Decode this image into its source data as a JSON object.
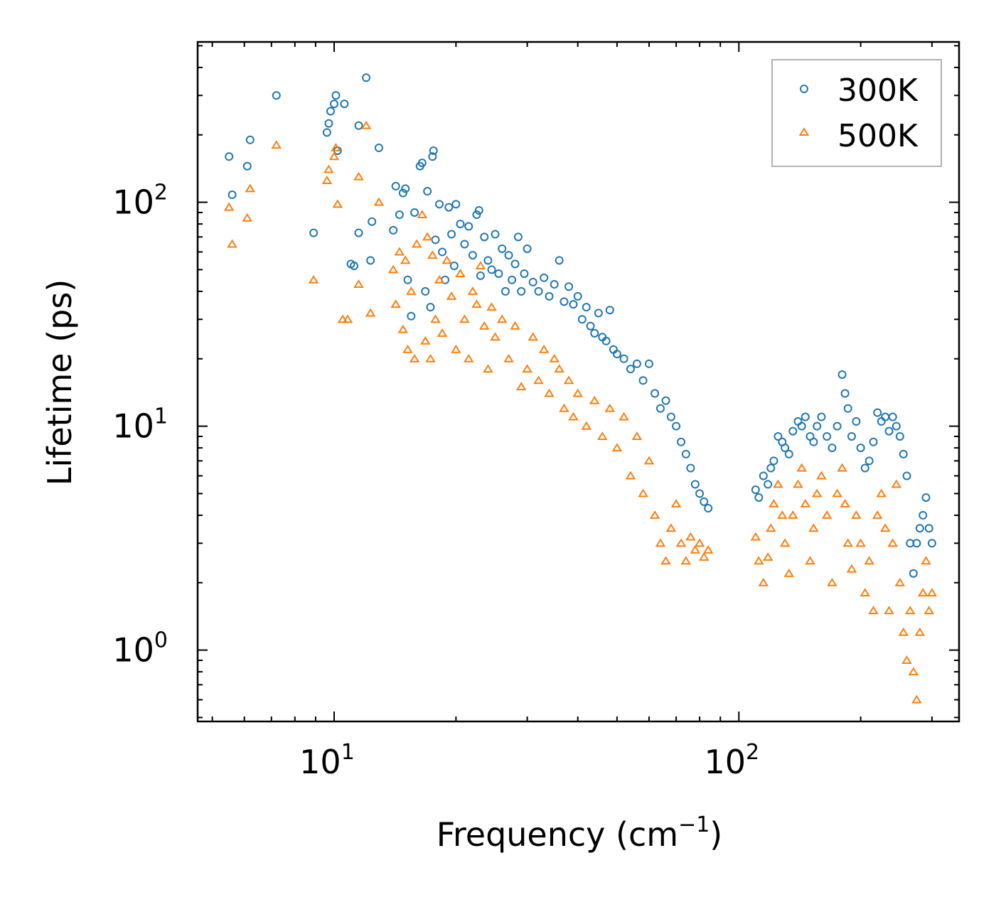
{
  "chart_data": {
    "type": "scatter",
    "x_scale": "log",
    "y_scale": "log",
    "xlabel": "Frequency (cm",
    "xlabel_sup": "−1",
    "xlabel_end": ")",
    "ylabel": "Lifetime (ps)",
    "xlim": [
      4.6,
      350
    ],
    "ylim": [
      0.48,
      520
    ],
    "x_ticks": [
      {
        "value": 10,
        "base": "10",
        "exp": "1"
      },
      {
        "value": 100,
        "base": "10",
        "exp": "2"
      }
    ],
    "y_ticks": [
      {
        "value": 1,
        "base": "10",
        "exp": "0"
      },
      {
        "value": 10,
        "base": "10",
        "exp": "1"
      },
      {
        "value": 100,
        "base": "10",
        "exp": "2"
      }
    ],
    "legend_position": "top-right",
    "series": [
      {
        "name": "300K",
        "marker": "circle",
        "color": "#1f77b4",
        "points": [
          [
            5.5,
            160
          ],
          [
            5.6,
            108
          ],
          [
            6.1,
            145
          ],
          [
            6.2,
            190
          ],
          [
            7.2,
            300
          ],
          [
            8.9,
            73
          ],
          [
            9.6,
            205
          ],
          [
            9.7,
            225
          ],
          [
            9.8,
            255
          ],
          [
            10.0,
            275
          ],
          [
            10.1,
            300
          ],
          [
            10.2,
            170
          ],
          [
            10.6,
            275
          ],
          [
            11.0,
            53
          ],
          [
            11.2,
            52
          ],
          [
            11.5,
            220
          ],
          [
            11.5,
            73
          ],
          [
            12.0,
            360
          ],
          [
            12.3,
            55
          ],
          [
            12.4,
            82
          ],
          [
            12.9,
            175
          ],
          [
            14.0,
            75
          ],
          [
            14.2,
            118
          ],
          [
            14.5,
            88
          ],
          [
            14.8,
            110
          ],
          [
            15.0,
            115
          ],
          [
            15.2,
            45
          ],
          [
            15.5,
            31
          ],
          [
            15.8,
            90
          ],
          [
            16.3,
            145
          ],
          [
            16.5,
            150
          ],
          [
            16.8,
            40
          ],
          [
            17.0,
            112
          ],
          [
            17.3,
            34
          ],
          [
            17.5,
            160
          ],
          [
            17.6,
            170
          ],
          [
            17.8,
            68
          ],
          [
            18.2,
            98
          ],
          [
            18.5,
            60
          ],
          [
            18.8,
            45
          ],
          [
            19.2,
            95
          ],
          [
            19.5,
            72
          ],
          [
            19.8,
            52
          ],
          [
            20.0,
            98
          ],
          [
            20.5,
            80
          ],
          [
            21.0,
            65
          ],
          [
            21.5,
            78
          ],
          [
            22.0,
            58
          ],
          [
            22.5,
            88
          ],
          [
            22.8,
            92
          ],
          [
            23.0,
            47
          ],
          [
            23.5,
            70
          ],
          [
            24.0,
            55
          ],
          [
            24.5,
            50
          ],
          [
            25.0,
            72
          ],
          [
            25.5,
            48
          ],
          [
            26.0,
            62
          ],
          [
            26.5,
            40
          ],
          [
            27.0,
            58
          ],
          [
            27.5,
            45
          ],
          [
            28.0,
            53
          ],
          [
            28.5,
            70
          ],
          [
            29.0,
            40
          ],
          [
            29.5,
            48
          ],
          [
            30.0,
            62
          ],
          [
            31.0,
            44
          ],
          [
            32.0,
            40
          ],
          [
            33.0,
            46
          ],
          [
            34.0,
            38
          ],
          [
            35.0,
            43
          ],
          [
            36.0,
            55
          ],
          [
            37.0,
            36
          ],
          [
            38.0,
            42
          ],
          [
            39.0,
            35
          ],
          [
            40.0,
            38
          ],
          [
            41.0,
            30
          ],
          [
            42.0,
            34
          ],
          [
            43.0,
            28
          ],
          [
            44.0,
            26
          ],
          [
            45.0,
            32
          ],
          [
            46.0,
            25
          ],
          [
            47.0,
            24
          ],
          [
            48.0,
            33
          ],
          [
            49.0,
            22
          ],
          [
            50.0,
            21
          ],
          [
            52.0,
            20
          ],
          [
            54.0,
            18
          ],
          [
            56.0,
            19
          ],
          [
            58.0,
            16
          ],
          [
            60.0,
            19
          ],
          [
            62.0,
            14
          ],
          [
            64.0,
            12
          ],
          [
            66.0,
            13
          ],
          [
            68.0,
            11
          ],
          [
            70.0,
            10
          ],
          [
            72.0,
            8.5
          ],
          [
            74.0,
            7.5
          ],
          [
            76.0,
            6.5
          ],
          [
            78.0,
            5.5
          ],
          [
            80.0,
            5.0
          ],
          [
            82.0,
            4.6
          ],
          [
            84.0,
            4.3
          ],
          [
            110,
            5.2
          ],
          [
            112,
            4.8
          ],
          [
            115,
            6.0
          ],
          [
            118,
            5.5
          ],
          [
            120,
            6.5
          ],
          [
            122,
            7.0
          ],
          [
            125,
            9.0
          ],
          [
            128,
            8.5
          ],
          [
            130,
            8.0
          ],
          [
            133,
            7.5
          ],
          [
            136,
            9.5
          ],
          [
            140,
            10.5
          ],
          [
            143,
            10.0
          ],
          [
            146,
            11.0
          ],
          [
            150,
            9.0
          ],
          [
            153,
            8.5
          ],
          [
            156,
            10.0
          ],
          [
            160,
            11.0
          ],
          [
            165,
            9.0
          ],
          [
            170,
            8.0
          ],
          [
            175,
            10.0
          ],
          [
            180,
            17.0
          ],
          [
            183,
            14.0
          ],
          [
            186,
            12.0
          ],
          [
            190,
            9.0
          ],
          [
            195,
            10.5
          ],
          [
            200,
            8.0
          ],
          [
            205,
            6.5
          ],
          [
            210,
            7.0
          ],
          [
            215,
            8.5
          ],
          [
            220,
            11.5
          ],
          [
            225,
            10.5
          ],
          [
            230,
            11.0
          ],
          [
            235,
            9.5
          ],
          [
            240,
            11.0
          ],
          [
            245,
            10.0
          ],
          [
            250,
            9.0
          ],
          [
            255,
            7.5
          ],
          [
            260,
            6.0
          ],
          [
            265,
            3.0
          ],
          [
            270,
            2.2
          ],
          [
            275,
            3.0
          ],
          [
            280,
            3.5
          ],
          [
            285,
            4.0
          ],
          [
            290,
            4.8
          ],
          [
            295,
            3.5
          ],
          [
            300,
            3.0
          ]
        ]
      },
      {
        "name": "500K",
        "marker": "triangle",
        "color": "#ff7f0e",
        "points": [
          [
            5.5,
            95
          ],
          [
            5.6,
            65
          ],
          [
            6.1,
            85
          ],
          [
            6.2,
            115
          ],
          [
            7.2,
            180
          ],
          [
            8.9,
            45
          ],
          [
            9.6,
            125
          ],
          [
            9.7,
            140
          ],
          [
            10.0,
            160
          ],
          [
            10.1,
            175
          ],
          [
            10.2,
            98
          ],
          [
            10.5,
            30
          ],
          [
            10.8,
            30
          ],
          [
            11.5,
            130
          ],
          [
            11.5,
            43
          ],
          [
            12.0,
            220
          ],
          [
            12.3,
            32
          ],
          [
            12.9,
            100
          ],
          [
            14.0,
            50
          ],
          [
            14.2,
            35
          ],
          [
            14.5,
            60
          ],
          [
            14.8,
            27
          ],
          [
            15.0,
            55
          ],
          [
            15.2,
            22
          ],
          [
            15.5,
            40
          ],
          [
            15.8,
            20
          ],
          [
            16.0,
            65
          ],
          [
            16.5,
            88
          ],
          [
            16.8,
            24
          ],
          [
            17.0,
            70
          ],
          [
            17.3,
            20
          ],
          [
            17.5,
            58
          ],
          [
            17.8,
            30
          ],
          [
            18.2,
            45
          ],
          [
            18.5,
            26
          ],
          [
            19.0,
            55
          ],
          [
            19.5,
            38
          ],
          [
            20.0,
            22
          ],
          [
            20.5,
            48
          ],
          [
            21.0,
            30
          ],
          [
            21.5,
            20
          ],
          [
            22.0,
            40
          ],
          [
            22.5,
            35
          ],
          [
            23.0,
            52
          ],
          [
            23.5,
            28
          ],
          [
            24.0,
            18
          ],
          [
            24.5,
            34
          ],
          [
            25.0,
            25
          ],
          [
            26.0,
            30
          ],
          [
            27.0,
            20
          ],
          [
            28.0,
            28
          ],
          [
            29.0,
            15
          ],
          [
            30.0,
            18
          ],
          [
            31.0,
            25
          ],
          [
            32.0,
            16
          ],
          [
            33.0,
            22
          ],
          [
            34.0,
            14
          ],
          [
            35.0,
            20
          ],
          [
            36.0,
            18
          ],
          [
            37.0,
            12
          ],
          [
            38.0,
            16
          ],
          [
            39.0,
            11
          ],
          [
            40.0,
            14
          ],
          [
            42.0,
            10
          ],
          [
            44.0,
            13
          ],
          [
            46.0,
            9
          ],
          [
            48.0,
            12
          ],
          [
            50.0,
            8
          ],
          [
            52.0,
            11
          ],
          [
            54.0,
            6
          ],
          [
            56.0,
            9
          ],
          [
            58.0,
            5
          ],
          [
            60.0,
            7
          ],
          [
            62.0,
            4
          ],
          [
            64.0,
            3
          ],
          [
            66.0,
            2.5
          ],
          [
            68.0,
            3.5
          ],
          [
            70.0,
            4.5
          ],
          [
            72.0,
            3.0
          ],
          [
            74.0,
            2.5
          ],
          [
            76.0,
            3.2
          ],
          [
            78.0,
            2.8
          ],
          [
            80.0,
            3.0
          ],
          [
            82.0,
            2.6
          ],
          [
            84.0,
            2.8
          ],
          [
            110,
            3.2
          ],
          [
            112,
            2.5
          ],
          [
            115,
            2.0
          ],
          [
            118,
            2.6
          ],
          [
            120,
            3.5
          ],
          [
            122,
            4.5
          ],
          [
            125,
            5.5
          ],
          [
            128,
            4.0
          ],
          [
            130,
            3.0
          ],
          [
            133,
            2.2
          ],
          [
            136,
            4.0
          ],
          [
            140,
            5.5
          ],
          [
            143,
            6.5
          ],
          [
            146,
            4.5
          ],
          [
            150,
            2.5
          ],
          [
            153,
            3.5
          ],
          [
            156,
            5.0
          ],
          [
            160,
            6.0
          ],
          [
            165,
            4.0
          ],
          [
            170,
            2.0
          ],
          [
            175,
            5.0
          ],
          [
            180,
            6.5
          ],
          [
            183,
            4.5
          ],
          [
            186,
            3.0
          ],
          [
            190,
            2.3
          ],
          [
            195,
            4.0
          ],
          [
            200,
            3.0
          ],
          [
            205,
            1.8
          ],
          [
            210,
            2.5
          ],
          [
            215,
            1.5
          ],
          [
            220,
            4.0
          ],
          [
            225,
            5.0
          ],
          [
            230,
            3.5
          ],
          [
            235,
            1.5
          ],
          [
            240,
            3.0
          ],
          [
            245,
            5.5
          ],
          [
            250,
            2.0
          ],
          [
            255,
            1.2
          ],
          [
            260,
            0.9
          ],
          [
            265,
            1.5
          ],
          [
            270,
            0.8
          ],
          [
            275,
            0.6
          ],
          [
            280,
            1.2
          ],
          [
            285,
            1.8
          ],
          [
            290,
            2.5
          ],
          [
            295,
            1.5
          ],
          [
            300,
            1.8
          ]
        ]
      }
    ]
  }
}
